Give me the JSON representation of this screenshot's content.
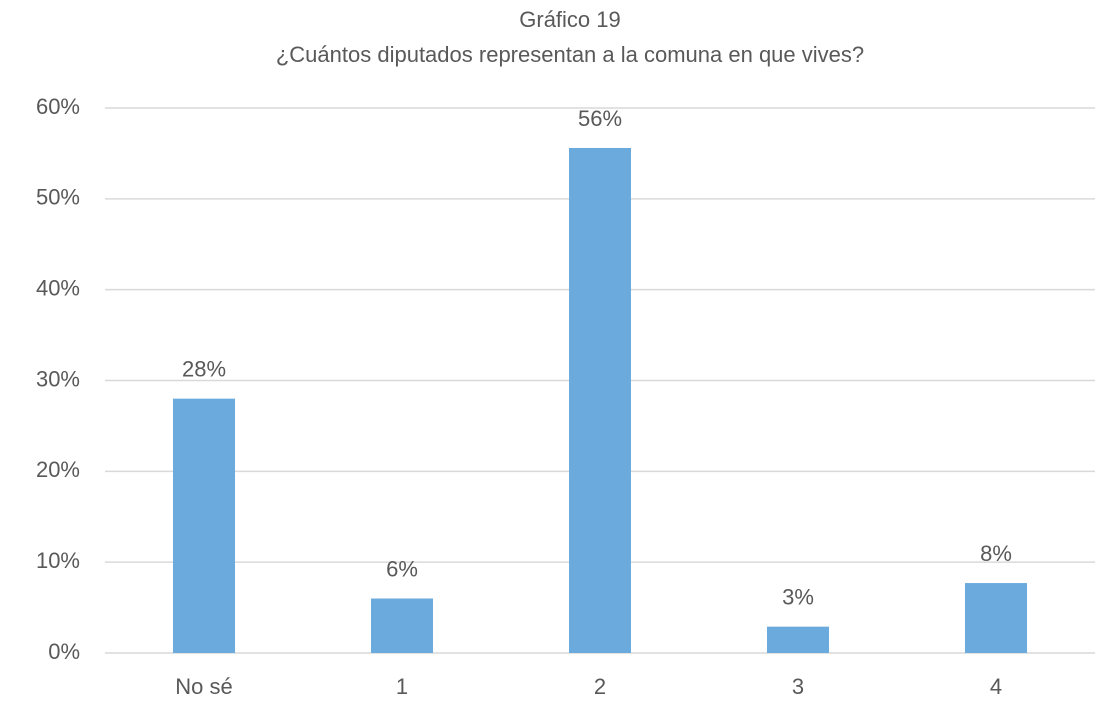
{
  "chart_data": {
    "type": "bar",
    "title": "Gráfico 19",
    "subtitle": "¿Cuántos diputados representan a la comuna en que vives?",
    "categories": [
      "No sé",
      "1",
      "2",
      "3",
      "4"
    ],
    "values": [
      28,
      6,
      55.6,
      2.9,
      7.7
    ],
    "value_labels": [
      "28%",
      "6%",
      "56%",
      "3%",
      "8%"
    ],
    "color": "#6aaadc",
    "ylim": [
      0,
      60
    ],
    "yticks": [
      {
        "value": 0,
        "label": "0%"
      },
      {
        "value": 10,
        "label": "10%"
      },
      {
        "value": 20,
        "label": "20%"
      },
      {
        "value": 30,
        "label": "30%"
      },
      {
        "value": 40,
        "label": "40%"
      },
      {
        "value": 50,
        "label": "50%"
      },
      {
        "value": 60,
        "label": "60%"
      }
    ],
    "grid": true
  }
}
